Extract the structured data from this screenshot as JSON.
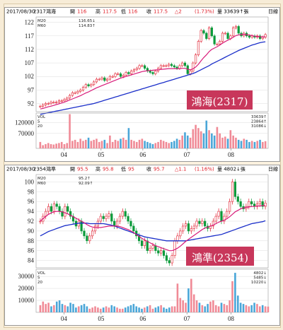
{
  "chart_data": [
    {
      "type": "line",
      "title_badge": "鴻海(2317)",
      "header": {
        "date": "2017/08/30",
        "code": "2317",
        "name": "鴻海",
        "open_label": "開",
        "open": "116",
        "high_label": "高",
        "high": "117.5",
        "low_label": "低",
        "low": "116",
        "close_label": "收",
        "close": "117.5",
        "change": "△2",
        "pct": "(1.73%)",
        "volume": "量 33639↑張",
        "period": "日線"
      },
      "legend": [
        {
          "name": "M20",
          "value": "116.65↓",
          "color": "#d81b7a"
        },
        {
          "name": "M60",
          "value": "114.83↑",
          "color": "#1a2ec9"
        }
      ],
      "xticks": [
        "04",
        "05",
        "06",
        "07",
        "08"
      ],
      "yticks": [
        92,
        97,
        102,
        107,
        112,
        117,
        122
      ],
      "ylim": [
        89,
        124
      ],
      "candles_close": [
        91,
        91.5,
        92,
        92,
        92.5,
        92.5,
        92.5,
        93,
        93,
        93.5,
        94,
        95,
        96,
        96,
        96.5,
        97,
        98,
        99,
        98.5,
        99,
        100,
        101,
        101,
        101.5,
        100.5,
        101,
        102,
        102,
        103,
        103,
        102,
        102.5,
        103.5,
        103,
        104,
        104.5,
        105,
        106,
        106,
        105,
        104,
        103.5,
        103,
        104,
        105,
        106,
        106,
        106,
        106.5,
        106,
        105.5,
        105,
        106,
        107,
        106,
        103,
        104,
        107,
        110,
        115,
        119,
        118,
        116,
        120,
        117,
        114,
        114,
        115,
        118,
        118,
        116,
        117,
        120,
        120.5,
        118,
        117,
        118,
        117,
        116.5,
        117,
        116.5,
        117,
        116,
        116.5,
        117.5
      ],
      "ma20": [
        90,
        90.2,
        90.5,
        90.8,
        91,
        91.3,
        91.6,
        91.9,
        92.2,
        92.5,
        92.9,
        93.3,
        93.7,
        94.1,
        94.5,
        94.9,
        95.4,
        95.9,
        96.3,
        96.8,
        97.3,
        97.8,
        98.2,
        98.6,
        99,
        99.4,
        99.8,
        100.2,
        100.6,
        101,
        101.4,
        101.7,
        102,
        102.3,
        102.6,
        102.9,
        103.2,
        103.5,
        103.8,
        104,
        104.1,
        104.2,
        104.3,
        104.4,
        104.5,
        104.6,
        104.7,
        104.8,
        104.9,
        104.9,
        104.9,
        104.9,
        104.9,
        105,
        105,
        104.7,
        104.5,
        104.8,
        105.5,
        106.5,
        107.8,
        109,
        110,
        111.2,
        112,
        112.5,
        113,
        113.6,
        114.3,
        114.9,
        115.4,
        115.9,
        116.5,
        117.1,
        117.4,
        117.5,
        117.6,
        117.5,
        117.3,
        117.1,
        116.9,
        116.8,
        116.7,
        116.6,
        116.65
      ],
      "ma60": [
        88,
        88.2,
        88.4,
        88.6,
        88.8,
        89,
        89.2,
        89.4,
        89.6,
        89.8,
        90,
        90.2,
        90.4,
        90.6,
        90.8,
        91,
        91.2,
        91.4,
        91.6,
        91.8,
        92,
        92.3,
        92.6,
        92.9,
        93.2,
        93.5,
        93.8,
        94.1,
        94.4,
        94.7,
        95,
        95.3,
        95.6,
        95.9,
        96.2,
        96.5,
        96.8,
        97.1,
        97.4,
        97.7,
        98,
        98.3,
        98.6,
        98.9,
        99.2,
        99.5,
        99.8,
        100.1,
        100.4,
        100.7,
        101,
        101.3,
        101.6,
        101.9,
        102.2,
        102.5,
        102.8,
        103.1,
        103.5,
        104,
        104.5,
        105,
        105.5,
        106,
        106.6,
        107.1,
        107.6,
        108.1,
        108.6,
        109.1,
        109.6,
        110.1,
        110.6,
        111.1,
        111.6,
        112,
        112.4,
        112.8,
        113.2,
        113.6,
        113.9,
        114.2,
        114.5,
        114.7,
        114.83
      ],
      "volume": {
        "legend": [
          {
            "name": "VOL",
            "value": "33639↑"
          },
          {
            "name": "5",
            "value": "23864↑"
          },
          {
            "name": "20",
            "value": "31086↓"
          }
        ],
        "yticks": [
          70000,
          120000
        ],
        "ylim": [
          0,
          165000
        ],
        "values": [
          30000,
          15000,
          20000,
          25000,
          20000,
          18000,
          22000,
          25000,
          30000,
          20000,
          25000,
          160000,
          35000,
          40000,
          30000,
          45000,
          35000,
          40000,
          50000,
          35000,
          40000,
          45000,
          30000,
          35000,
          40000,
          25000,
          60000,
          30000,
          40000,
          35000,
          45000,
          50000,
          40000,
          95000,
          40000,
          35000,
          30000,
          40000,
          45000,
          35000,
          30000,
          25000,
          20000,
          25000,
          30000,
          40000,
          35000,
          30000,
          25000,
          30000,
          35000,
          45000,
          40000,
          60000,
          75000,
          60000,
          50000,
          90000,
          110000,
          95000,
          80000,
          70000,
          130000,
          85000,
          70000,
          60000,
          100000,
          70000,
          50000,
          55000,
          45000,
          85000,
          60000,
          50000,
          40000,
          35000,
          45000,
          40000,
          30000,
          35000,
          30000,
          35000,
          40000,
          30000,
          33639
        ]
      }
    },
    {
      "type": "line",
      "title_badge": "鴻準(2354)",
      "header": {
        "date": "2017/08/30",
        "code": "2354",
        "name": "鴻準",
        "open_label": "開",
        "open": "95.5",
        "high_label": "高",
        "high": "95.8",
        "low_label": "低",
        "low": "95",
        "close_label": "收",
        "close": "95.7",
        "change": "△1.1",
        "pct": "(1.16%)",
        "volume": "量 4802↓張",
        "period": "日線"
      },
      "legend": [
        {
          "name": "M20",
          "value": "95.2↑",
          "color": "#d81b7a"
        },
        {
          "name": "M60",
          "value": "92.09↑",
          "color": "#1a2ec9"
        }
      ],
      "xticks": [
        "04",
        "05",
        "06",
        "07",
        "08"
      ],
      "yticks": [
        84,
        86,
        88,
        90,
        92,
        94,
        96,
        98,
        100
      ],
      "ylim": [
        82.5,
        101.5
      ],
      "candles_close": [
        92,
        93,
        94,
        95,
        94,
        95.5,
        95,
        94,
        93,
        95,
        94,
        93,
        92,
        91,
        92,
        90,
        89,
        88,
        89,
        90,
        91,
        92,
        93,
        92.5,
        93,
        93.5,
        92,
        91,
        92,
        93,
        94,
        93,
        92,
        91,
        90,
        89,
        88,
        87,
        88,
        86,
        86.5,
        87,
        86,
        85.5,
        86,
        85,
        84,
        83.5,
        85,
        88,
        89,
        90,
        91,
        91.5,
        90,
        90.5,
        91,
        92,
        91.5,
        92,
        91,
        90.5,
        91,
        92,
        93,
        94,
        92,
        93,
        94,
        96,
        100,
        97,
        96,
        95,
        94.5,
        95,
        96,
        95.5,
        95,
        95.5,
        96,
        95,
        95.7
      ],
      "ma20": [
        92,
        92.5,
        93,
        93.4,
        93.7,
        93.9,
        94,
        94,
        93.9,
        93.7,
        93.5,
        93.2,
        92.9,
        92.6,
        92.3,
        92,
        91.7,
        91.3,
        91,
        90.8,
        90.7,
        90.7,
        90.7,
        90.8,
        90.9,
        91,
        91,
        91,
        91,
        90.9,
        90.7,
        90.5,
        90.3,
        90,
        89.7,
        89.3,
        88.9,
        88.5,
        88.2,
        87.9,
        87.6,
        87.3,
        87,
        86.8,
        86.6,
        86.4,
        86.2,
        86,
        86,
        86.2,
        86.5,
        86.9,
        87.4,
        87.9,
        88.3,
        88.7,
        89.1,
        89.5,
        89.9,
        90.3,
        90.6,
        90.8,
        91,
        91.2,
        91.5,
        91.8,
        92,
        92.2,
        92.5,
        92.9,
        93.4,
        93.9,
        94.2,
        94.5,
        94.7,
        94.8,
        94.9,
        95,
        95,
        95.1,
        95.1,
        95.2,
        95.2
      ],
      "ma60": [
        89,
        89.3,
        89.6,
        89.9,
        90.1,
        90.3,
        90.5,
        90.7,
        90.9,
        91.1,
        91.2,
        91.3,
        91.4,
        91.5,
        91.6,
        91.6,
        91.6,
        91.6,
        91.5,
        91.5,
        91.5,
        91.5,
        91.5,
        91.5,
        91.4,
        91.3,
        91.2,
        91,
        90.8,
        90.6,
        90.4,
        90.2,
        90,
        89.8,
        89.6,
        89.4,
        89.2,
        89,
        88.8,
        88.7,
        88.6,
        88.5,
        88.4,
        88.3,
        88.2,
        88.1,
        88,
        88,
        88,
        88,
        88,
        88,
        88,
        88,
        88.1,
        88.2,
        88.3,
        88.4,
        88.5,
        88.6,
        88.7,
        88.8,
        88.9,
        89,
        89.1,
        89.2,
        89.3,
        89.5,
        89.7,
        89.9,
        90.1,
        90.3,
        90.5,
        90.7,
        90.9,
        91.1,
        91.3,
        91.5,
        91.6,
        91.7,
        91.8,
        91.9,
        92.09
      ],
      "volume": {
        "legend": [
          {
            "name": "VOL",
            "value": "4802↓"
          },
          {
            "name": "5",
            "value": "5485↓"
          },
          {
            "name": "20",
            "value": "10220↓"
          }
        ],
        "yticks": [
          10000,
          20000,
          30000
        ],
        "ylim": [
          0,
          36000
        ],
        "values": [
          6000,
          9000,
          7000,
          8000,
          5000,
          6000,
          9000,
          10000,
          7000,
          6000,
          5000,
          8000,
          7000,
          4000,
          5000,
          6000,
          7000,
          5000,
          3000,
          4000,
          5000,
          4000,
          3000,
          4000,
          5000,
          4000,
          6000,
          5000,
          4000,
          3000,
          3000,
          4000,
          5000,
          6000,
          7000,
          5000,
          4000,
          3000,
          4000,
          5000,
          6000,
          3000,
          4000,
          5000,
          6000,
          4000,
          3000,
          4000,
          5000,
          5000,
          24000,
          12000,
          10000,
          8000,
          20000,
          28000,
          15000,
          10000,
          8000,
          6000,
          5000,
          7000,
          9000,
          10000,
          6000,
          5000,
          8000,
          7000,
          6000,
          10000,
          26000,
          33000,
          14000,
          8000,
          7000,
          6000,
          5000,
          6000,
          8000,
          7000,
          5000,
          6000,
          5000,
          4802
        ]
      }
    }
  ]
}
